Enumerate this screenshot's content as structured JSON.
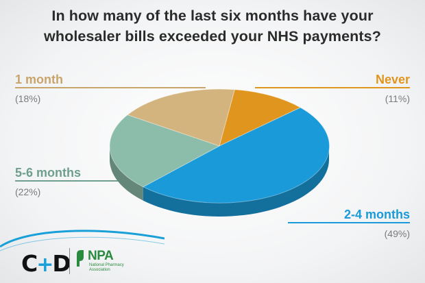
{
  "title_lines": [
    "In how many of the last six months have your",
    "wholesaler bills exceeded your NHS payments?"
  ],
  "chart_data": {
    "type": "pie",
    "title": "In how many of the last six months have your wholesaler bills exceeded your NHS payments?",
    "slices": [
      {
        "label": "Never",
        "value": 11,
        "pct_text": "(11%)",
        "color": "#e0961e"
      },
      {
        "label": "2-4 months",
        "value": 49,
        "pct_text": "(49%)",
        "color": "#1a9ad8"
      },
      {
        "label": "5-6 months",
        "value": 22,
        "pct_text": "(22%)",
        "color": "#8cbcaa"
      },
      {
        "label": "1 month",
        "value": 18,
        "pct_text": "(18%)",
        "color": "#d4b47e"
      }
    ]
  },
  "logos": {
    "cd": {
      "c": "C",
      "plus": "+",
      "d": "D"
    },
    "npa": {
      "name": "NPA",
      "subtitle": "National Pharmacy Association"
    }
  },
  "colors": {
    "never": "#e0961e",
    "two_four": "#1a9ad8",
    "five_six": "#6f9f8c",
    "one_month": "#c9a46b",
    "npa_green": "#2a8a3f",
    "cd_blue": "#1aa0d8"
  }
}
